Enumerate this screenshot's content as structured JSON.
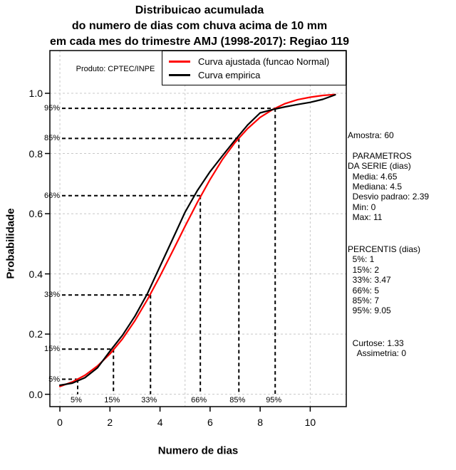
{
  "header": {
    "title_lines": [
      "Distribuicao acumulada",
      "do numero de dias com chuva acima de 10 mm",
      "em cada mes do trimestre AMJ (1998-2017): Regiao 119"
    ]
  },
  "plot": {
    "watermark": "Produto: CPTEC/INPE"
  },
  "legend": {
    "entries": [
      {
        "label": "Curva ajustada (funcao Normal)",
        "color": "#ff0000"
      },
      {
        "label": "Curva empirica",
        "color": "#000000"
      }
    ]
  },
  "stats_panel": {
    "block1": [
      "Amostra: 60",
      "",
      "  PARAMETROS",
      "DA SERIE (dias)",
      "  Media: 4.65",
      "  Mediana: 4.5",
      "  Desvio padrao: 2.39",
      "  Min: 0",
      "  Max: 11"
    ],
    "block2": [
      "PERCENTIS (dias)",
      "  5%: 1",
      "  15%: 2",
      "  33%: 3.47",
      "  66%: 5",
      "  85%: 7",
      "  95%: 9.05"
    ],
    "block3": [
      "  Curtose: 1.33",
      "    Assimetria: 0"
    ]
  },
  "chart_data": {
    "type": "line",
    "title": "Distribuicao acumulada do numero de dias com chuva acima de 10 mm em cada mes do trimestre AMJ (1998-2017): Regiao 119",
    "xlabel": "Numero de dias",
    "ylabel": "Probabilidade",
    "xlim": [
      -0.4,
      11.44
    ],
    "ylim": [
      -0.041,
      1.142
    ],
    "x_ticks": [
      0,
      2,
      4,
      6,
      8,
      10
    ],
    "y_ticks": [
      {
        "v": 0.0,
        "label": "0.0"
      },
      {
        "v": 0.2,
        "label": "0.2"
      },
      {
        "v": 0.4,
        "label": "0.4"
      },
      {
        "v": 0.6,
        "label": "0.6"
      },
      {
        "v": 0.8,
        "label": "0.8"
      },
      {
        "v": 1.0,
        "label": "1.0"
      }
    ],
    "grid": {
      "x_values": [
        0,
        5,
        10
      ],
      "y_values": [
        0,
        0.2,
        0.4,
        0.6,
        0.8,
        1.0
      ],
      "color": "#c8c8c8"
    },
    "x_start": 0,
    "x_step": 0.5,
    "series": [
      {
        "name": "Curva ajustada (funcao Normal)",
        "color": "#ff0000",
        "values": [
          0.026,
          0.041,
          0.063,
          0.094,
          0.134,
          0.184,
          0.245,
          0.315,
          0.393,
          0.475,
          0.558,
          0.639,
          0.714,
          0.781,
          0.837,
          0.883,
          0.92,
          0.946,
          0.966,
          0.979,
          0.987,
          0.993,
          0.996
        ]
      },
      {
        "name": "Curva empirica",
        "color": "#000000",
        "values": [
          0.03,
          0.037,
          0.055,
          0.088,
          0.143,
          0.196,
          0.26,
          0.335,
          0.425,
          0.515,
          0.605,
          0.678,
          0.74,
          0.793,
          0.845,
          0.895,
          0.935,
          0.946,
          0.955,
          0.963,
          0.97,
          0.98,
          0.995
        ]
      }
    ],
    "percentile_markers": [
      {
        "label": "5%",
        "p": 0.05,
        "day": 0.71
      },
      {
        "label": "15%",
        "p": 0.15,
        "day": 2.14
      },
      {
        "label": "33%",
        "p": 0.33,
        "day": 3.62
      },
      {
        "label": "66%",
        "p": 0.66,
        "day": 5.61
      },
      {
        "label": "85%",
        "p": 0.85,
        "day": 7.15
      },
      {
        "label": "95%",
        "p": 0.95,
        "day": 8.6
      }
    ],
    "fitted_distribution": {
      "mean": 4.65,
      "sd": 2.39
    }
  }
}
